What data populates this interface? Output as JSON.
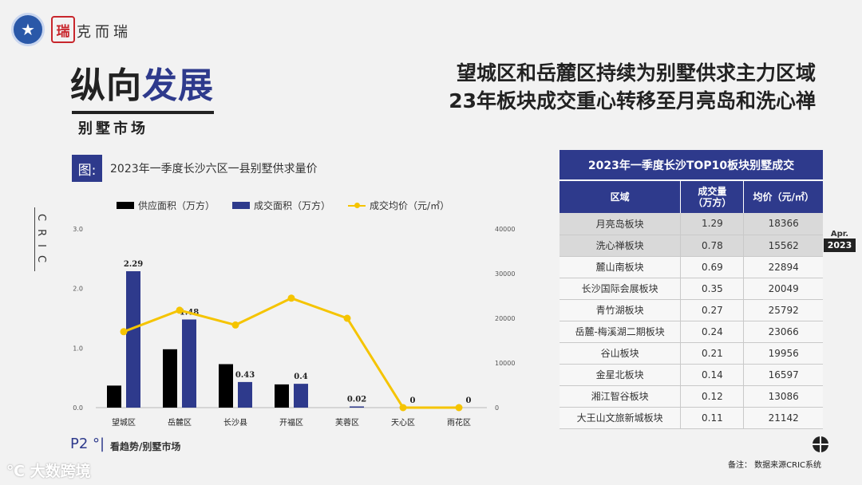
{
  "logo": {
    "text": "克而瑞",
    "seal": "瑞"
  },
  "title": {
    "part1": "纵向",
    "part2": "发展",
    "subtitle": "别墅市场"
  },
  "headline": [
    "望城区和岳麓区持续为别墅供求主力区域",
    "23年板块成交重心转移至月亮岛和洗心禅"
  ],
  "figure": {
    "box": "图:",
    "title": "2023年一季度长沙六区一县别墅供求量价"
  },
  "side_label": "CRIC",
  "colors": {
    "accent": "#2e3a8c",
    "supply": "#000000",
    "deal": "#2e3a8c",
    "price": "#f5c400"
  },
  "chart_data": {
    "type": "bar",
    "categories": [
      "望城区",
      "岳麓区",
      "长沙县",
      "开福区",
      "芙蓉区",
      "天心区",
      "雨花区"
    ],
    "series": [
      {
        "name": "供应面积（万方）",
        "type": "bar",
        "axis": "left",
        "values": [
          0.37,
          0.98,
          0.73,
          0.39,
          0,
          0,
          0
        ]
      },
      {
        "name": "成交面积（万方）",
        "type": "bar",
        "axis": "left",
        "values": [
          2.29,
          1.48,
          0.43,
          0.4,
          0.02,
          0,
          0
        ]
      },
      {
        "name": "成交均价（元/㎡）",
        "type": "line",
        "axis": "right",
        "values": [
          17000,
          21800,
          18500,
          24500,
          20000,
          0,
          0
        ]
      }
    ],
    "bar_labels": [
      "2.29",
      "1.48",
      "0.43",
      "0.4",
      "0.02",
      "0",
      "0"
    ],
    "y_left": {
      "ticks": [
        "0.0",
        "1.0",
        "2.0",
        "3.0"
      ],
      "range": [
        0,
        3
      ]
    },
    "y_right": {
      "ticks": [
        "0",
        "10000",
        "20000",
        "30000",
        "40000"
      ],
      "range": [
        0,
        40000
      ]
    },
    "legend_position": "top"
  },
  "page": {
    "number": "P2",
    "caption": "看趋势/别墅市场"
  },
  "watermark": "大数跨境",
  "table": {
    "title": "2023年一季度长沙TOP10板块别墅成交",
    "headers": [
      "区域",
      "成交量\n（万方）",
      "均价（元/㎡）"
    ],
    "rows": [
      [
        "月亮岛板块",
        "1.29",
        "18366"
      ],
      [
        "洗心禅板块",
        "0.78",
        "15562"
      ],
      [
        "麓山南板块",
        "0.69",
        "22894"
      ],
      [
        "长沙国际会展板块",
        "0.35",
        "20049"
      ],
      [
        "青竹湖板块",
        "0.27",
        "25792"
      ],
      [
        "岳麓-梅溪湖二期板块",
        "0.24",
        "23066"
      ],
      [
        "谷山板块",
        "0.21",
        "19956"
      ],
      [
        "金星北板块",
        "0.14",
        "16597"
      ],
      [
        "湘江智谷板块",
        "0.12",
        "13086"
      ],
      [
        "大王山文旅新城板块",
        "0.11",
        "21142"
      ]
    ],
    "highlighted_rows": [
      0,
      1
    ]
  },
  "badge": {
    "month": "Apr.",
    "year": "2023"
  },
  "note": "备注：  数据来源CRIC系统"
}
